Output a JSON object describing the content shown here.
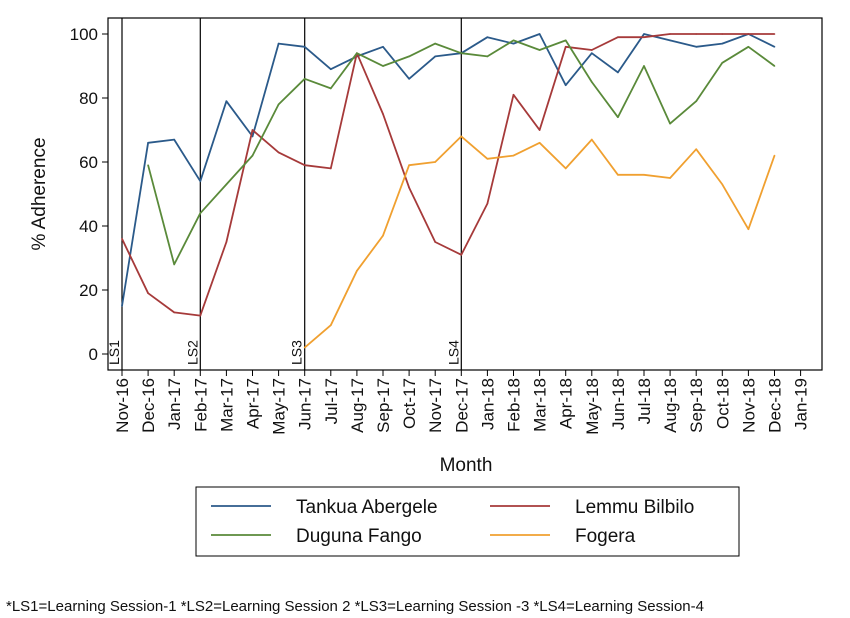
{
  "chart_data": {
    "type": "line",
    "xlabel": "Month",
    "ylabel": "% Adherence",
    "ylim": [
      0,
      100
    ],
    "yticks": [
      0,
      20,
      40,
      60,
      80,
      100
    ],
    "grid": false,
    "legend_position": "bottom",
    "x_ticks": [
      "Nov-16",
      "Dec-16",
      "Jan-17",
      "Feb-17",
      "Mar-17",
      "Apr-17",
      "May-17",
      "Jun-17",
      "Jul-17",
      "Aug-17",
      "Sep-17",
      "Oct-17",
      "Nov-17",
      "Dec-17",
      "Jan-18",
      "Feb-18",
      "Mar-18",
      "Apr-18",
      "May-18",
      "Jun-18",
      "Jul-18",
      "Aug-18",
      "Sep-18",
      "Oct-18",
      "Nov-18",
      "Dec-18",
      "Jan-19"
    ],
    "series": [
      {
        "name": "Tankua Abergele",
        "color": "#2b5a8a",
        "x": [
          "Nov-16",
          "Dec-16",
          "Jan-17",
          "Feb-17",
          "Mar-17",
          "Apr-17",
          "May-17",
          "Jun-17",
          "Jul-17",
          "Aug-17",
          "Sep-17",
          "Oct-17",
          "Nov-17",
          "Dec-17",
          "Jan-18",
          "Feb-18",
          "Mar-18",
          "Apr-18",
          "May-18",
          "Jun-18",
          "Jul-18",
          "Aug-18",
          "Sep-18",
          "Oct-18",
          "Nov-18",
          "Dec-18"
        ],
        "values": [
          15,
          66,
          67,
          54,
          79,
          68,
          97,
          96,
          89,
          93,
          96,
          86,
          93,
          94,
          99,
          97,
          100,
          84,
          94,
          88,
          100,
          98,
          96,
          97,
          100,
          96
        ]
      },
      {
        "name": "Lemmu Bilbilo",
        "color": "#a63a3a",
        "x": [
          "Nov-16",
          "Dec-16",
          "Jan-17",
          "Feb-17",
          "Mar-17",
          "Apr-17",
          "May-17",
          "Jun-17",
          "Jul-17",
          "Aug-17",
          "Sep-17",
          "Oct-17",
          "Nov-17",
          "Dec-17",
          "Jan-18",
          "Feb-18",
          "Mar-18",
          "Apr-18",
          "May-18",
          "Jun-18",
          "Jul-18",
          "Aug-18",
          "Sep-18",
          "Oct-18",
          "Nov-18",
          "Dec-18"
        ],
        "values": [
          36,
          19,
          13,
          12,
          35,
          70,
          63,
          59,
          58,
          94,
          75,
          52,
          35,
          31,
          47,
          81,
          70,
          96,
          95,
          99,
          99,
          100,
          100,
          100,
          100,
          100
        ]
      },
      {
        "name": "Duguna Fango",
        "color": "#5a8a3a",
        "x": [
          "Dec-16",
          "Jan-17",
          "Feb-17",
          "Mar-17",
          "Apr-17",
          "May-17",
          "Jun-17",
          "Jul-17",
          "Aug-17",
          "Sep-17",
          "Oct-17",
          "Nov-17",
          "Dec-17",
          "Jan-18",
          "Feb-18",
          "Mar-18",
          "Apr-18",
          "May-18",
          "Jun-18",
          "Jul-18",
          "Aug-18",
          "Sep-18",
          "Oct-18",
          "Nov-18",
          "Dec-18"
        ],
        "values": [
          59,
          28,
          44,
          53,
          62,
          78,
          86,
          83,
          94,
          90,
          93,
          97,
          94,
          93,
          98,
          95,
          98,
          85,
          74,
          90,
          72,
          79,
          91,
          96,
          90
        ]
      },
      {
        "name": "Fogera",
        "color": "#f0a030",
        "x": [
          "Jun-17",
          "Jul-17",
          "Aug-17",
          "Sep-17",
          "Oct-17",
          "Nov-17",
          "Dec-17",
          "Jan-18",
          "Feb-18",
          "Mar-18",
          "Apr-18",
          "May-18",
          "Jun-18",
          "Jul-18",
          "Aug-18",
          "Sep-18",
          "Oct-18",
          "Nov-18",
          "Dec-18"
        ],
        "values": [
          2,
          9,
          26,
          37,
          59,
          60,
          68,
          61,
          62,
          66,
          58,
          67,
          56,
          56,
          55,
          64,
          53,
          39,
          62
        ]
      }
    ],
    "annotations": [
      {
        "label": "LS1",
        "x": "Nov-16"
      },
      {
        "label": "LS2",
        "x": "Feb-17"
      },
      {
        "label": "LS3",
        "x": "Jun-17"
      },
      {
        "label": "LS4",
        "x": "Dec-17"
      }
    ]
  },
  "footnote": "*LS1=Learning Session-1 *LS2=Learning Session 2 *LS3=Learning Session -3   *LS4=Learning Session-4"
}
